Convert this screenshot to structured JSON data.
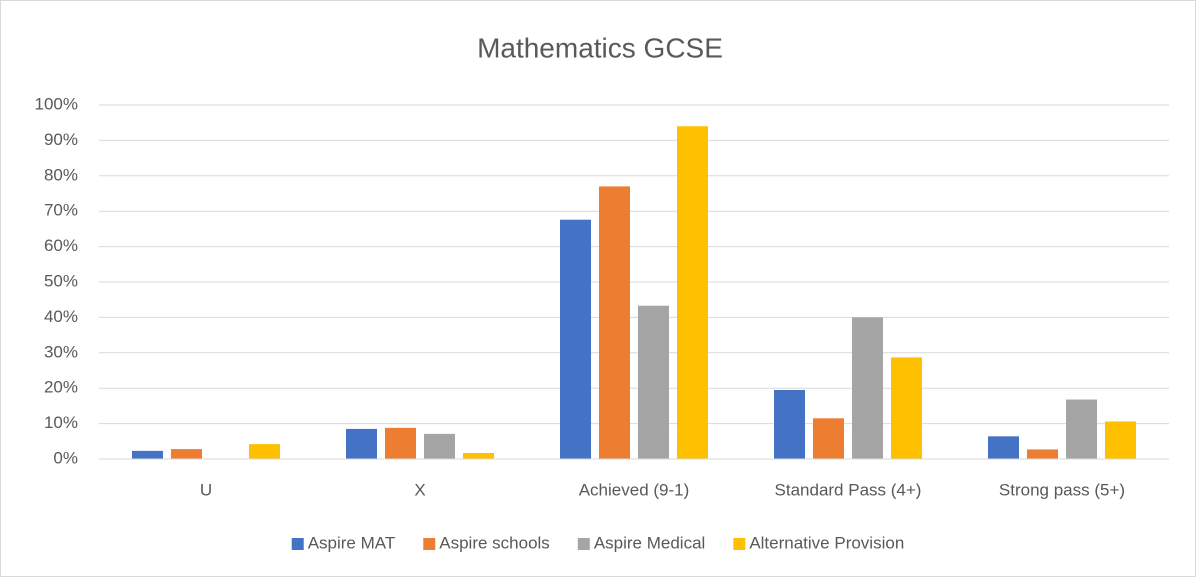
{
  "chart_data": {
    "type": "bar",
    "title": "Mathematics GCSE",
    "categories": [
      "U",
      "X",
      "Achieved (9-1)",
      "Standard Pass (4+)",
      "Strong pass (5+)"
    ],
    "series": [
      {
        "name": "Aspire MAT",
        "color": "#4472c4",
        "values": [
          2.3,
          8.5,
          67.6,
          19.5,
          6.4
        ]
      },
      {
        "name": "Aspire schools",
        "color": "#ed7d31",
        "values": [
          2.8,
          8.8,
          77,
          11.5,
          2.7
        ]
      },
      {
        "name": "Aspire Medical",
        "color": "#a5a5a5",
        "values": [
          0,
          7.1,
          43.3,
          40,
          16.8
        ]
      },
      {
        "name": "Alternative Provision",
        "color": "#ffc000",
        "values": [
          4.2,
          1.7,
          94,
          28.7,
          10.6
        ]
      }
    ],
    "ylim": [
      0,
      100
    ],
    "yticks": [
      {
        "value": 0,
        "label": "0%"
      },
      {
        "value": 10,
        "label": "10%"
      },
      {
        "value": 20,
        "label": "20%"
      },
      {
        "value": 30,
        "label": "30%"
      },
      {
        "value": 40,
        "label": "40%"
      },
      {
        "value": 50,
        "label": "50%"
      },
      {
        "value": 60,
        "label": "60%"
      },
      {
        "value": 70,
        "label": "70%"
      },
      {
        "value": 80,
        "label": "80%"
      },
      {
        "value": 90,
        "label": "90%"
      },
      {
        "value": 100,
        "label": "100%"
      }
    ],
    "grid": true,
    "legend": "bottom"
  }
}
